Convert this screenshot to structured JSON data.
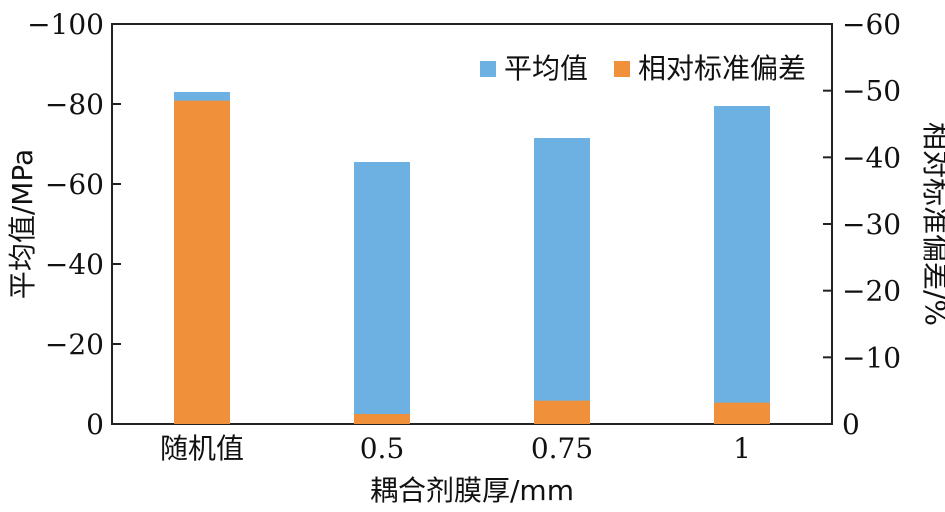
{
  "chart_data": {
    "type": "bar",
    "categories": [
      "随机值",
      "0.5",
      "0.75",
      "1"
    ],
    "series": [
      {
        "name": "平均值",
        "axis": "left",
        "color": "#6cb1e1",
        "values": [
          -83,
          -65.5,
          -71.5,
          -79.5
        ]
      },
      {
        "name": "相对标准偏差",
        "axis": "right",
        "color": "#f0903a",
        "values": [
          -48.5,
          -1.5,
          -3.5,
          -3.2
        ]
      }
    ],
    "xlabel": "耦合剂膜厚/mm",
    "ylabel_left": "平均值/MPa",
    "ylabel_right": "相对标准偏差/%",
    "ylim_left": [
      0,
      -100
    ],
    "ylim_right": [
      0,
      -60
    ],
    "yticks_left": [
      "0",
      "−20",
      "−40",
      "−60",
      "−80",
      "−100"
    ],
    "yticks_right": [
      "0",
      "−10",
      "−20",
      "−30",
      "−40",
      "−50",
      "−60"
    ],
    "legend_position": "top-right",
    "grid": false
  }
}
